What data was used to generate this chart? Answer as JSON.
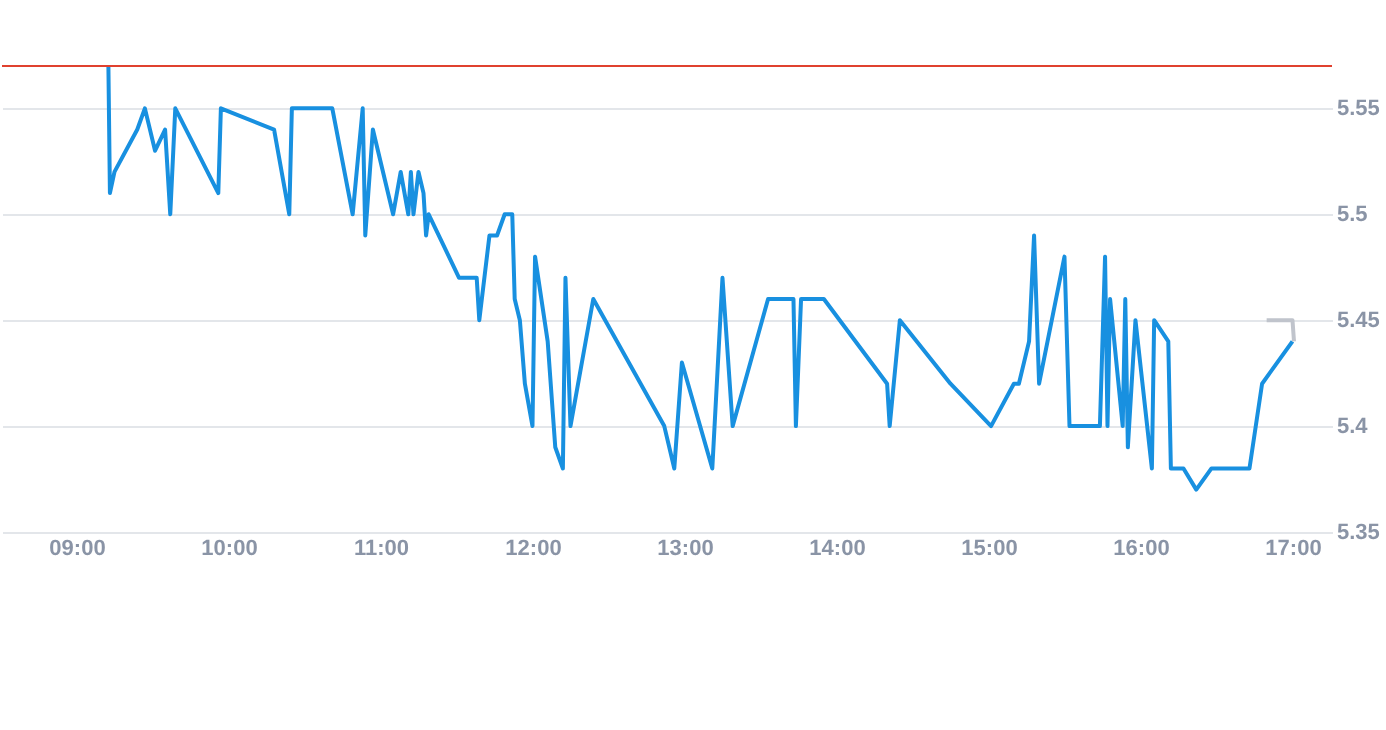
{
  "chart_data": {
    "type": "line",
    "xlim": [
      8.51,
      17.26
    ],
    "ylim": [
      5.35,
      5.57
    ],
    "xticks": [
      {
        "value": 9,
        "label": "09:00"
      },
      {
        "value": 10,
        "label": "10:00"
      },
      {
        "value": 11,
        "label": "11:00"
      },
      {
        "value": 12,
        "label": "12:00"
      },
      {
        "value": 13,
        "label": "13:00"
      },
      {
        "value": 14,
        "label": "14:00"
      },
      {
        "value": 15,
        "label": "15:00"
      },
      {
        "value": 16,
        "label": "16:00"
      },
      {
        "value": 17,
        "label": "17:00"
      }
    ],
    "yticks": [
      5.35,
      5.4,
      5.45,
      5.5,
      5.55
    ],
    "grid": "y",
    "marker": "none",
    "line_style": "solid",
    "series": [
      {
        "color": "#1890e0",
        "x": [
          9.21,
          9.22,
          9.25,
          9.4,
          9.45,
          9.517,
          9.583,
          9.617,
          9.65,
          9.933,
          9.95,
          10.3,
          10.4,
          10.417,
          10.683,
          10.817,
          10.883,
          10.9,
          10.95,
          11.083,
          11.133,
          11.183,
          11.2,
          11.217,
          11.25,
          11.283,
          11.3,
          11.317,
          11.517,
          11.633,
          11.65,
          11.717,
          11.767,
          11.817,
          11.867,
          11.883,
          11.917,
          11.95,
          12.0,
          12.017,
          12.1,
          12.15,
          12.2,
          12.217,
          12.25,
          12.4,
          12.867,
          12.933,
          12.983,
          13.183,
          13.25,
          13.317,
          13.55,
          13.717,
          13.733,
          13.767,
          13.917,
          14.333,
          14.35,
          14.417,
          14.75,
          15.017,
          15.167,
          15.2,
          15.267,
          15.3,
          15.333,
          15.5,
          15.533,
          15.733,
          15.767,
          15.783,
          15.8,
          15.883,
          15.9,
          15.917,
          15.967,
          16.075,
          16.09,
          16.183,
          16.2,
          16.283,
          16.367,
          16.467,
          16.717,
          16.8,
          17.0
        ],
        "values": [
          5.57,
          5.51,
          5.52,
          5.54,
          5.55,
          5.53,
          5.54,
          5.5,
          5.55,
          5.51,
          5.55,
          5.54,
          5.5,
          5.55,
          5.55,
          5.5,
          5.55,
          5.49,
          5.54,
          5.5,
          5.52,
          5.5,
          5.52,
          5.5,
          5.52,
          5.51,
          5.49,
          5.5,
          5.47,
          5.47,
          5.45,
          5.49,
          5.49,
          5.5,
          5.5,
          5.46,
          5.45,
          5.42,
          5.4,
          5.48,
          5.44,
          5.39,
          5.38,
          5.47,
          5.4,
          5.46,
          5.4,
          5.38,
          5.43,
          5.38,
          5.47,
          5.4,
          5.46,
          5.46,
          5.4,
          5.46,
          5.46,
          5.42,
          5.4,
          5.45,
          5.42,
          5.4,
          5.42,
          5.42,
          5.44,
          5.49,
          5.42,
          5.48,
          5.4,
          5.4,
          5.48,
          5.4,
          5.46,
          5.4,
          5.46,
          5.39,
          5.45,
          5.38,
          5.45,
          5.44,
          5.38,
          5.38,
          5.37,
          5.38,
          5.38,
          5.42,
          5.44
        ]
      },
      {
        "color": "#c0c4cc",
        "x": [
          16.83,
          17.0,
          17.01
        ],
        "values": [
          5.45,
          5.45,
          5.44
        ]
      }
    ],
    "ref_lines": [
      {
        "axis": "y",
        "value": 5.57,
        "color": "#e0412f"
      }
    ]
  }
}
